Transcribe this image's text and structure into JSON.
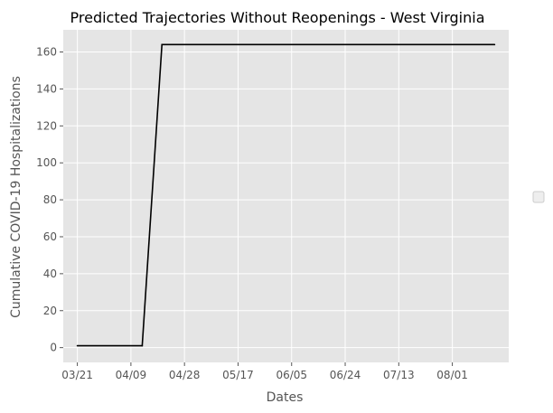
{
  "chart_data": {
    "type": "line",
    "title": "Predicted Trajectories Without Reopenings - West Virginia",
    "xlabel": "Dates",
    "ylabel": "Cumulative COVID-19 Hospitalizations",
    "x_tick_labels": [
      "03/21",
      "04/09",
      "04/28",
      "05/17",
      "06/05",
      "06/24",
      "07/13",
      "08/01"
    ],
    "y_ticks": [
      0,
      20,
      40,
      60,
      80,
      100,
      120,
      140,
      160
    ],
    "xlim": [
      "2020-03-16",
      "2020-08-21"
    ],
    "ylim": [
      -8,
      172
    ],
    "grid": true,
    "legend": {
      "placement": "right",
      "entries": []
    },
    "series": [
      {
        "color": "#000000",
        "x": [
          "2020-03-21",
          "2020-04-13",
          "2020-04-20",
          "2020-08-16"
        ],
        "y": [
          1,
          1,
          164,
          164
        ]
      }
    ]
  },
  "colors": {
    "plot_background": "#e5e5e5",
    "grid": "#ffffff",
    "line": "#000000",
    "text": "#555555"
  }
}
